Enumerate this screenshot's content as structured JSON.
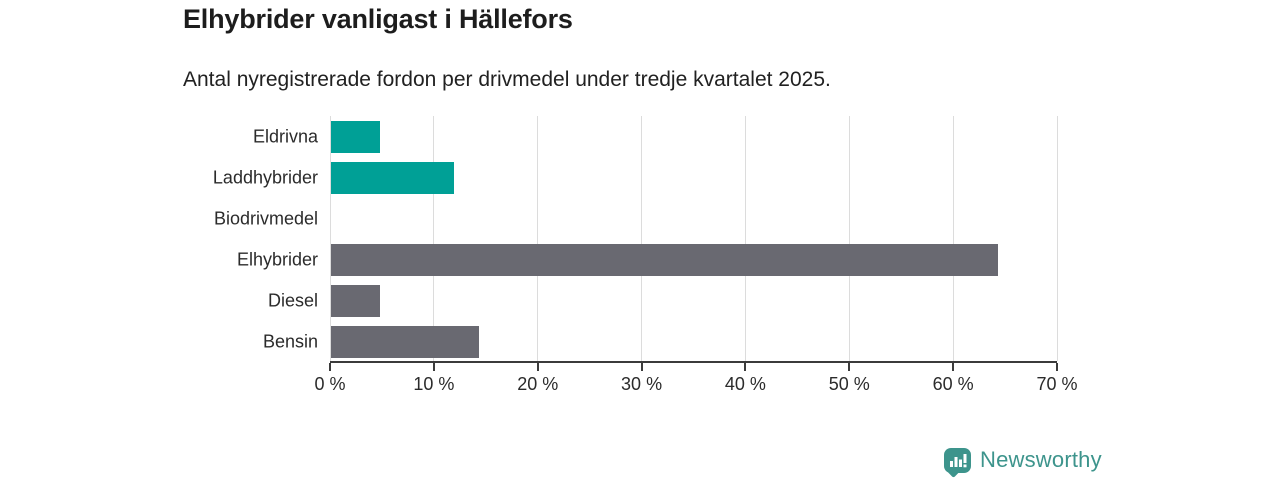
{
  "title": "Elhybrider vanligast i Hällefors",
  "subtitle": "Antal nyregistrerade fordon per drivmedel under tredje kvartalet 2025.",
  "chart_data": {
    "type": "bar",
    "orientation": "horizontal",
    "categories": [
      "Eldrivna",
      "Laddhybrider",
      "Biodrivmedel",
      "Elhybrider",
      "Diesel",
      "Bensin"
    ],
    "values": [
      4.8,
      11.9,
      0,
      64.3,
      4.8,
      14.3
    ],
    "unit": "%",
    "bar_colors": [
      "#00a096",
      "#00a096",
      "#696971",
      "#696971",
      "#696971",
      "#696971"
    ],
    "title": "Elhybrider vanligast i Hällefors",
    "subtitle": "Antal nyregistrerade fordon per drivmedel under tredje kvartalet 2025.",
    "xlabel": "",
    "ylabel": "",
    "xlim": [
      0,
      70
    ],
    "x_ticks": [
      0,
      10,
      20,
      30,
      40,
      50,
      60,
      70
    ],
    "x_tick_labels": [
      "0 %",
      "10 %",
      "20 %",
      "30 %",
      "40 %",
      "50 %",
      "60 %",
      "70 %"
    ],
    "grid": true,
    "legend": false
  },
  "colors": {
    "accent_teal": "#00a096",
    "neutral_gray": "#696971",
    "gridline": "#dcdcdc",
    "axis": "#3b3b3b",
    "logo": "#3d948c"
  },
  "branding": {
    "logo_text": "Newsworthy",
    "logo_color": "#3d948c",
    "logo_icon": "bar-chart-speech-bubble-icon"
  }
}
